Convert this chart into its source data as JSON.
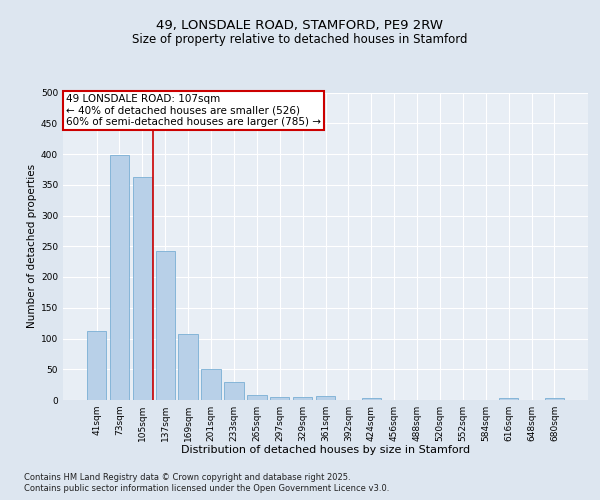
{
  "title": "49, LONSDALE ROAD, STAMFORD, PE9 2RW",
  "subtitle": "Size of property relative to detached houses in Stamford",
  "xlabel": "Distribution of detached houses by size in Stamford",
  "ylabel": "Number of detached properties",
  "categories": [
    "41sqm",
    "73sqm",
    "105sqm",
    "137sqm",
    "169sqm",
    "201sqm",
    "233sqm",
    "265sqm",
    "297sqm",
    "329sqm",
    "361sqm",
    "392sqm",
    "424sqm",
    "456sqm",
    "488sqm",
    "520sqm",
    "552sqm",
    "584sqm",
    "616sqm",
    "648sqm",
    "680sqm"
  ],
  "values": [
    113,
    398,
    363,
    243,
    107,
    50,
    30,
    8,
    5,
    5,
    7,
    0,
    4,
    0,
    0,
    0,
    0,
    0,
    4,
    0,
    4
  ],
  "bar_color": "#b8d0e8",
  "bar_edge_color": "#7aafd4",
  "vline_color": "#cc0000",
  "vline_x_index": 2,
  "ylim": [
    0,
    500
  ],
  "yticks": [
    0,
    50,
    100,
    150,
    200,
    250,
    300,
    350,
    400,
    450,
    500
  ],
  "annotation_title": "49 LONSDALE ROAD: 107sqm",
  "annotation_line1": "← 40% of detached houses are smaller (526)",
  "annotation_line2": "60% of semi-detached houses are larger (785) →",
  "annotation_box_facecolor": "#ffffff",
  "annotation_box_edgecolor": "#cc0000",
  "bg_color": "#dde6f0",
  "plot_bg_color": "#e8eef5",
  "grid_color": "#ffffff",
  "footer_line1": "Contains HM Land Registry data © Crown copyright and database right 2025.",
  "footer_line2": "Contains public sector information licensed under the Open Government Licence v3.0.",
  "title_fontsize": 9.5,
  "subtitle_fontsize": 8.5,
  "xlabel_fontsize": 8,
  "ylabel_fontsize": 7.5,
  "tick_fontsize": 6.5,
  "annotation_fontsize": 7.5,
  "footer_fontsize": 6
}
